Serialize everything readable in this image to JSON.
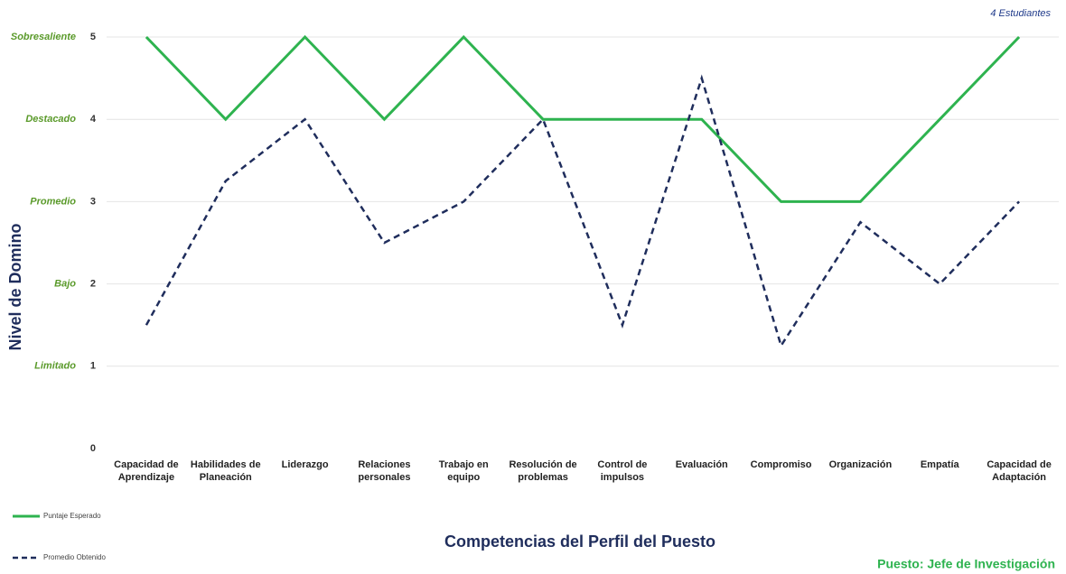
{
  "chart_data": {
    "type": "line",
    "subtitle": "4 Estudiantes",
    "x_label": "Competencias del Perfil del Puesto",
    "y_label": "Nivel de Domino",
    "footnote": "Puesto: Jefe de Investigación",
    "categories": [
      "Capacidad de Aprendizaje",
      "Habilidades de Planeación",
      "Liderazgo",
      "Relaciones personales",
      "Trabajo en equipo",
      "Resolución de problemas",
      "Control de impulsos",
      "Evaluación",
      "Compromiso",
      "Organización",
      "Empatía",
      "Capacidad de Adaptación"
    ],
    "series": [
      {
        "name": "Puntaje Esperado",
        "color": "#2eb34f",
        "dash": false,
        "values": [
          5,
          4,
          5,
          4,
          5,
          4,
          4,
          4,
          3,
          3,
          4,
          5
        ]
      },
      {
        "name": "Promedio Obtenido",
        "color": "#1f2d5c",
        "dash": true,
        "values": [
          1.5,
          3.25,
          4,
          2.5,
          3,
          4,
          1.5,
          4.5,
          1.25,
          2.75,
          2,
          3
        ]
      }
    ],
    "ylim": [
      0,
      5
    ],
    "yticks": [
      0,
      1,
      2,
      3,
      4,
      5
    ],
    "level_labels": [
      {
        "value": 1,
        "label": "Limitado"
      },
      {
        "value": 2,
        "label": "Bajo"
      },
      {
        "value": 3,
        "label": "Promedio"
      },
      {
        "value": 4,
        "label": "Destacado"
      },
      {
        "value": 5,
        "label": "Sobresaliente"
      }
    ],
    "grid": true,
    "legend": "bottom-left"
  }
}
